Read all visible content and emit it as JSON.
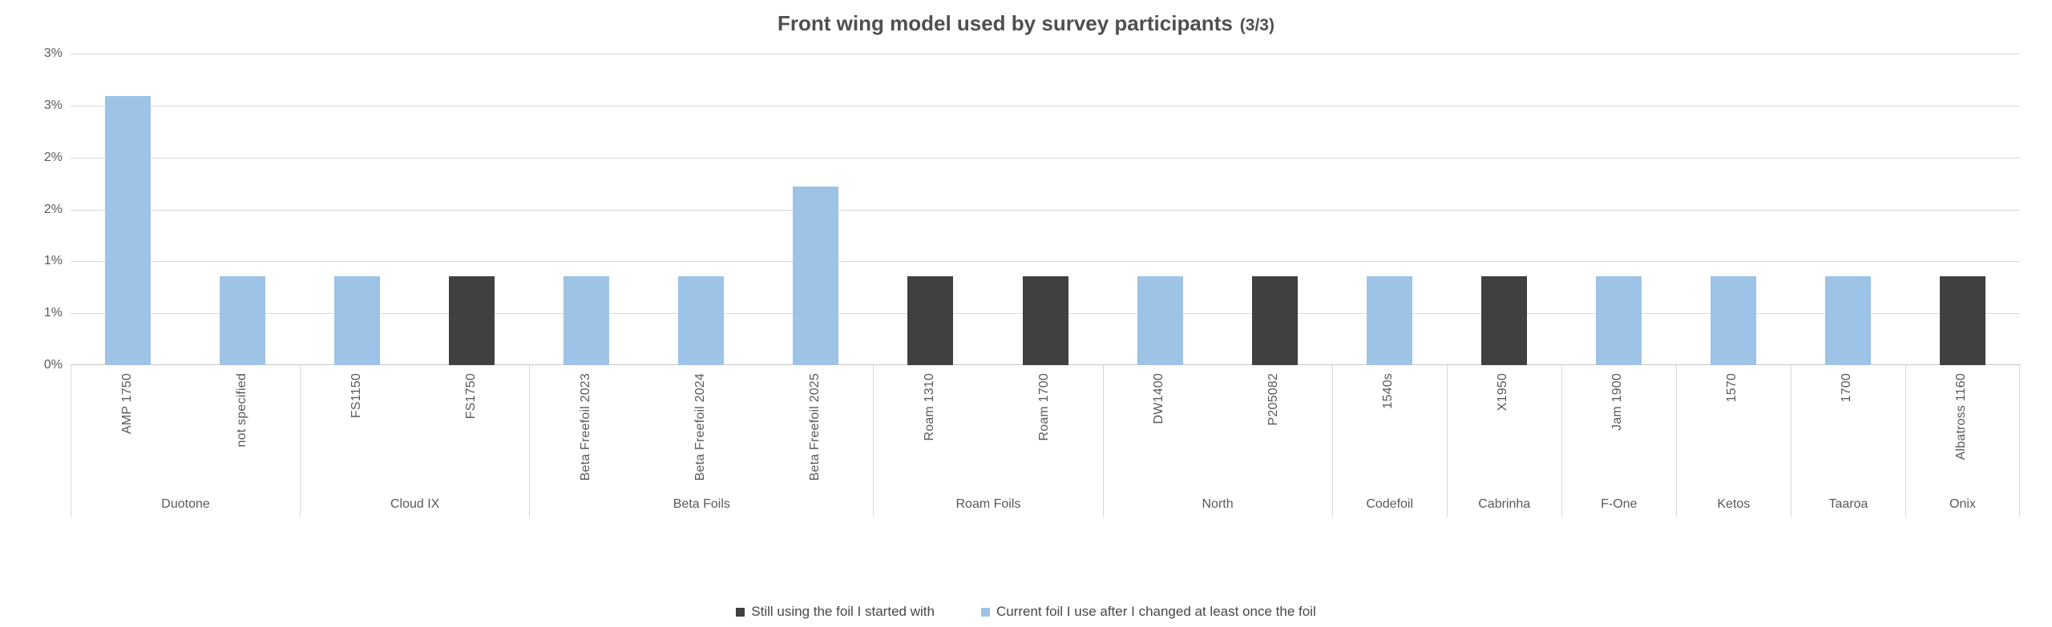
{
  "title": {
    "main": "Front wing model used by survey participants",
    "suffix": "(3/3)"
  },
  "legend": [
    {
      "key": "still",
      "label": "Still using the foil I started with",
      "color": "#404040"
    },
    {
      "key": "changed",
      "label": "Current foil I use after I changed at least once the foil",
      "color": "#9DC3E6"
    }
  ],
  "chart_data": {
    "type": "bar",
    "title": "Front wing model used by survey participants (3/3)",
    "xlabel": "",
    "ylabel": "",
    "ylim": [
      0,
      3
    ],
    "gridline_step_pct": 0.5,
    "grid": true,
    "ytick_labels_top_to_bottom": [
      "3%",
      "3%",
      "2%",
      "2%",
      "1%",
      "1%",
      "0%"
    ],
    "legend_position": "bottom-center",
    "series": [
      {
        "key": "still",
        "name": "Still using the foil I started with",
        "color": "#404040"
      },
      {
        "key": "changed",
        "name": "Current foil I use after I changed at least once the foil",
        "color": "#9DC3E6"
      }
    ],
    "groups": [
      {
        "brand": "Duotone",
        "items": [
          {
            "model": "AMP 1750",
            "series": "changed",
            "value_pct": 2.59
          },
          {
            "model": "not specified",
            "series": "changed",
            "value_pct": 0.86
          }
        ]
      },
      {
        "brand": "Cloud IX",
        "items": [
          {
            "model": "FS1150",
            "series": "changed",
            "value_pct": 0.86
          },
          {
            "model": "FS1750",
            "series": "still",
            "value_pct": 0.86
          }
        ]
      },
      {
        "brand": "Beta Foils",
        "items": [
          {
            "model": "Beta Freefoil 2023",
            "series": "changed",
            "value_pct": 0.86
          },
          {
            "model": "Beta Freefoil 2024",
            "series": "changed",
            "value_pct": 0.86
          },
          {
            "model": "Beta Freefoil 2025",
            "series": "changed",
            "value_pct": 1.72
          }
        ]
      },
      {
        "brand": "Roam Foils",
        "items": [
          {
            "model": "Roam 1310",
            "series": "still",
            "value_pct": 0.86
          },
          {
            "model": "Roam 1700",
            "series": "still",
            "value_pct": 0.86
          }
        ]
      },
      {
        "brand": "North",
        "items": [
          {
            "model": "DW1400",
            "series": "changed",
            "value_pct": 0.86
          },
          {
            "model": "P205082",
            "series": "still",
            "value_pct": 0.86
          }
        ]
      },
      {
        "brand": "Codefoil",
        "items": [
          {
            "model": "1540s",
            "series": "changed",
            "value_pct": 0.86
          }
        ]
      },
      {
        "brand": "Cabrinha",
        "items": [
          {
            "model": "X1950",
            "series": "still",
            "value_pct": 0.86
          }
        ]
      },
      {
        "brand": "F-One",
        "items": [
          {
            "model": "Jam 1900",
            "series": "changed",
            "value_pct": 0.86
          }
        ]
      },
      {
        "brand": "Ketos",
        "items": [
          {
            "model": "1570",
            "series": "changed",
            "value_pct": 0.86
          }
        ]
      },
      {
        "brand": "Taaroa",
        "items": [
          {
            "model": "1700",
            "series": "changed",
            "value_pct": 0.86
          }
        ]
      },
      {
        "brand": "Onix",
        "items": [
          {
            "model": "Albatross 1160",
            "series": "still",
            "value_pct": 0.86
          }
        ]
      }
    ]
  }
}
